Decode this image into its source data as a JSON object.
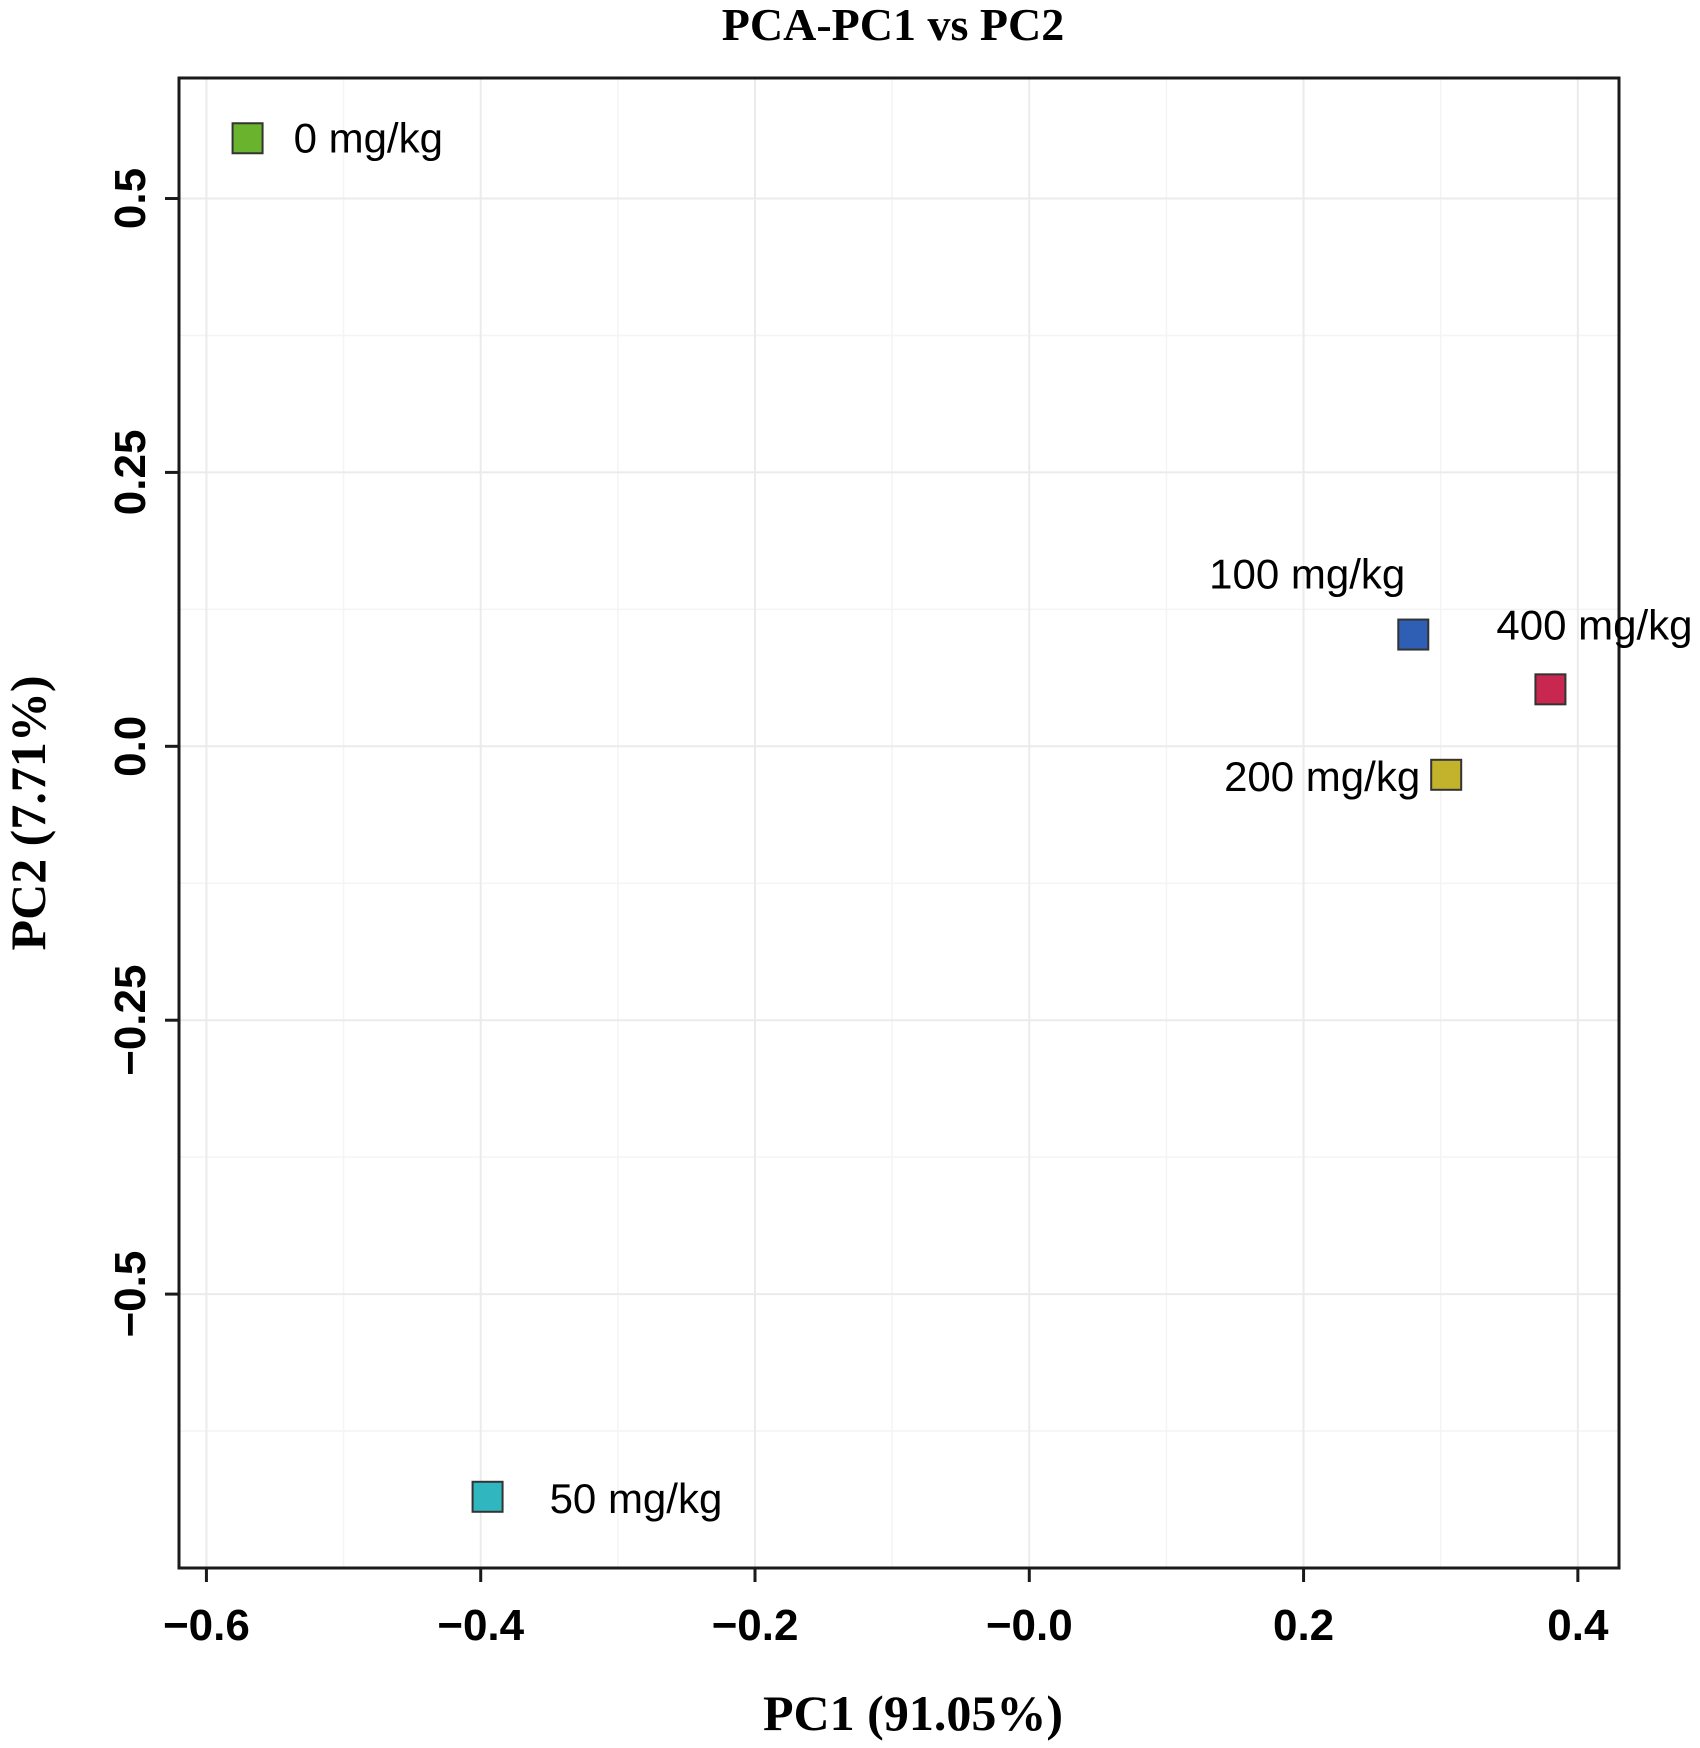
{
  "chart_data": {
    "type": "scatter",
    "title": "PCA-PC1 vs PC2",
    "xlabel": "PC1 (91.05%)",
    "ylabel": "PC2 (7.71%)",
    "xlim": [
      -0.62,
      0.43
    ],
    "ylim": [
      -0.75,
      0.61
    ],
    "xticks": [
      -0.6,
      -0.4,
      -0.2,
      0.0,
      0.2,
      0.4
    ],
    "xtick_labels": [
      "−0.6",
      "−0.4",
      "−0.2",
      "−0.0",
      "0.2",
      "0.4"
    ],
    "yticks": [
      -0.5,
      -0.25,
      0.0,
      0.25,
      0.5
    ],
    "ytick_labels": [
      "−0.5",
      "−0.25",
      "0.0",
      "0.25",
      "0.5"
    ],
    "grid": true,
    "marker": "square",
    "points": [
      {
        "label": "0 mg/kg",
        "x": -0.57,
        "y": 0.555,
        "color": "#6ab42d"
      },
      {
        "label": "50 mg/kg",
        "x": -0.395,
        "y": -0.685,
        "color": "#2fb6bf"
      },
      {
        "label": "100 mg/kg",
        "x": 0.28,
        "y": 0.102,
        "color": "#2e5fb5"
      },
      {
        "label": "200 mg/kg",
        "x": 0.304,
        "y": -0.026,
        "color": "#c3b22c"
      },
      {
        "label": "400 mg/kg",
        "x": 0.38,
        "y": 0.052,
        "color": "#c8284f"
      }
    ]
  }
}
